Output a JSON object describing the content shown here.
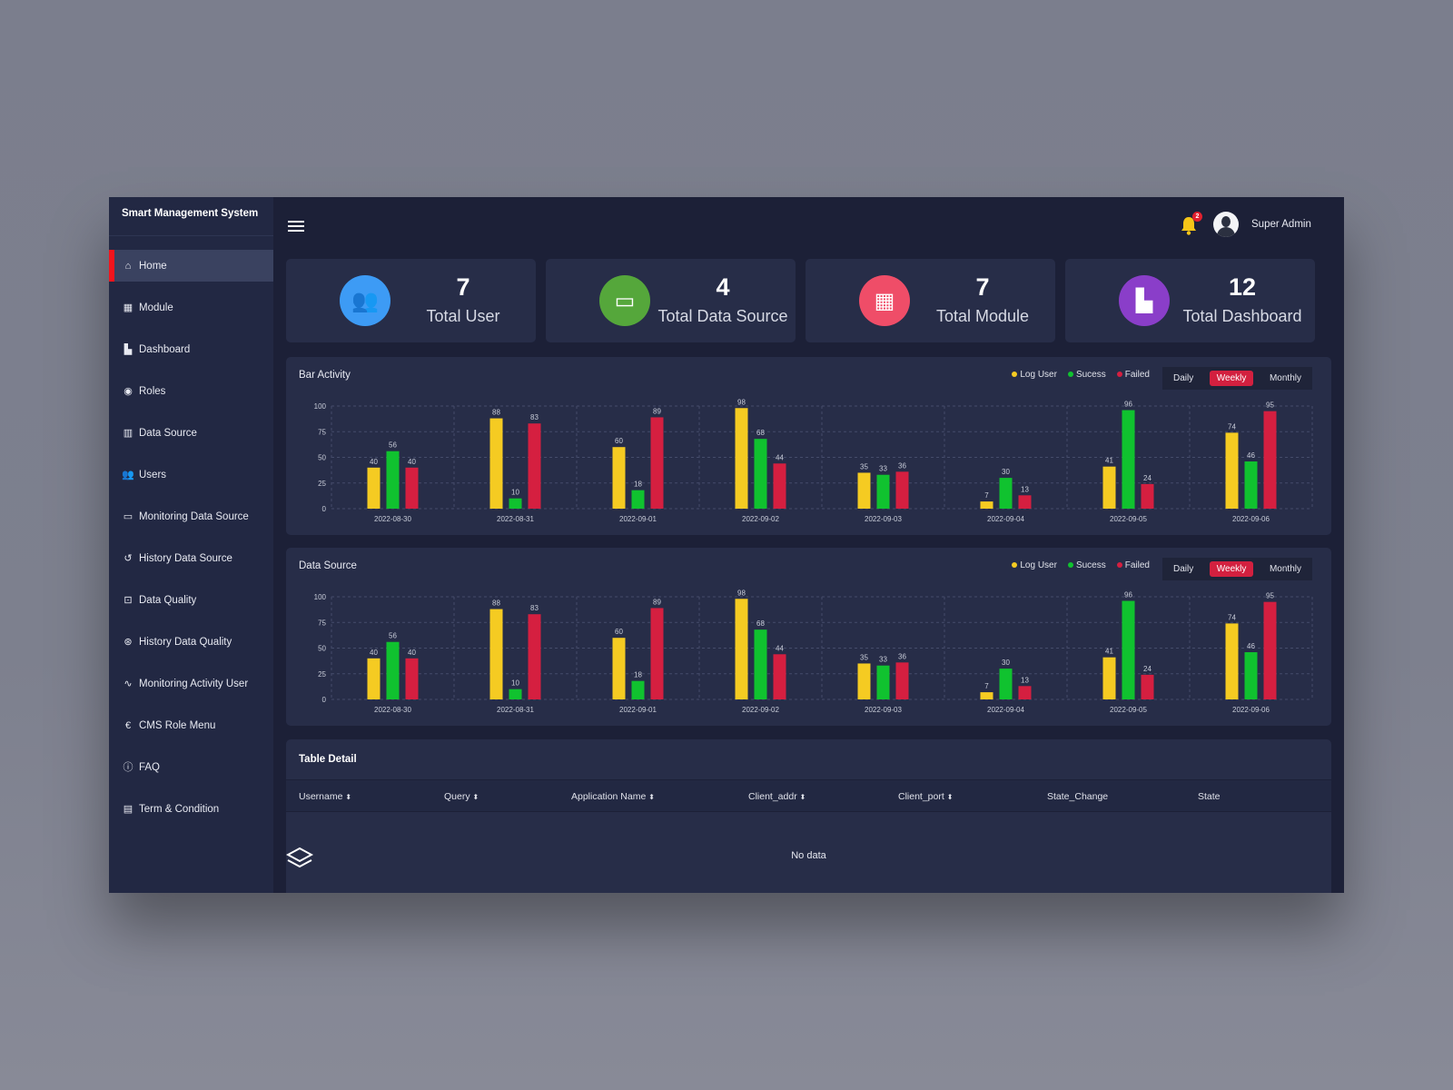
{
  "app": {
    "title": "Smart Management System"
  },
  "sidebar": {
    "items": [
      {
        "label": "Home",
        "icon": "home-icon",
        "glyph": "⌂",
        "active": true
      },
      {
        "label": "Module",
        "icon": "grid-icon",
        "glyph": "▦"
      },
      {
        "label": "Dashboard",
        "icon": "dashboard-icon",
        "glyph": "▙"
      },
      {
        "label": "Roles",
        "icon": "user-circle-icon",
        "glyph": "◉"
      },
      {
        "label": "Data Source",
        "icon": "bar-chart-icon",
        "glyph": "▥"
      },
      {
        "label": "Users",
        "icon": "users-icon",
        "glyph": "👥"
      },
      {
        "label": "Monitoring Data Source",
        "icon": "monitor-icon",
        "glyph": "▭"
      },
      {
        "label": "History Data Source",
        "icon": "history-icon",
        "glyph": "↺"
      },
      {
        "label": "Data Quality",
        "icon": "document-search-icon",
        "glyph": "⊡"
      },
      {
        "label": "History Data Quality",
        "icon": "history-search-icon",
        "glyph": "⊛"
      },
      {
        "label": "Monitoring Activity User",
        "icon": "activity-icon",
        "glyph": "∿"
      },
      {
        "label": "CMS Role Menu",
        "icon": "hand-coin-icon",
        "glyph": "€"
      },
      {
        "label": "FAQ",
        "icon": "info-circle-icon",
        "glyph": "ⓘ"
      },
      {
        "label": "Term & Condition",
        "icon": "file-text-icon",
        "glyph": "▤"
      }
    ]
  },
  "header": {
    "notifications": "2",
    "user": "Super Admin"
  },
  "cards": [
    {
      "value": "7",
      "label": "Total User",
      "color": "#3d9bf5",
      "glyph": "👥",
      "icon": "users-icon"
    },
    {
      "value": "4",
      "label": "Total Data Source",
      "color": "#55a73b",
      "glyph": "▭",
      "icon": "monitor-icon"
    },
    {
      "value": "7",
      "label": "Total Module",
      "color": "#ef4d68",
      "glyph": "▦",
      "icon": "grid-icon"
    },
    {
      "value": "12",
      "label": "Total Dashboard",
      "color": "#8a3ec9",
      "glyph": "▙",
      "icon": "dashboard-icon"
    }
  ],
  "range": {
    "options": [
      "Daily",
      "Weekly",
      "Monthly"
    ],
    "selected": "Weekly"
  },
  "chart_data": [
    {
      "type": "bar",
      "title": "Bar Activity",
      "categories": [
        "2022-08-30",
        "2022-08-31",
        "2022-09-01",
        "2022-09-02",
        "2022-09-03",
        "2022-09-04",
        "2022-09-05",
        "2022-09-06"
      ],
      "ylim": [
        0,
        100
      ],
      "yticks": [
        0,
        25,
        50,
        75,
        100
      ],
      "grid": true,
      "legend": "top-right",
      "series": [
        {
          "name": "Log User",
          "color": "#f5cb22",
          "values": [
            40,
            88,
            60,
            98,
            35,
            7,
            41,
            74
          ]
        },
        {
          "name": "Sucess",
          "color": "#10c22f",
          "values": [
            56,
            10,
            18,
            68,
            33,
            30,
            96,
            46
          ]
        },
        {
          "name": "Failed",
          "color": "#d51f40",
          "values": [
            40,
            83,
            89,
            44,
            36,
            13,
            24,
            95
          ]
        }
      ]
    },
    {
      "type": "bar",
      "title": "Data Source",
      "categories": [
        "2022-08-30",
        "2022-08-31",
        "2022-09-01",
        "2022-09-02",
        "2022-09-03",
        "2022-09-04",
        "2022-09-05",
        "2022-09-06"
      ],
      "ylim": [
        0,
        100
      ],
      "yticks": [
        0,
        25,
        50,
        75,
        100
      ],
      "grid": true,
      "legend": "top-right",
      "series": [
        {
          "name": "Log User",
          "color": "#f5cb22",
          "values": [
            40,
            88,
            60,
            98,
            35,
            7,
            41,
            74
          ]
        },
        {
          "name": "Sucess",
          "color": "#10c22f",
          "values": [
            56,
            10,
            18,
            68,
            33,
            30,
            96,
            46
          ]
        },
        {
          "name": "Failed",
          "color": "#d51f40",
          "values": [
            40,
            83,
            89,
            44,
            36,
            13,
            24,
            95
          ]
        }
      ]
    }
  ],
  "table": {
    "title": "Table Detail",
    "columns": [
      {
        "label": "Username",
        "sortable": true
      },
      {
        "label": "Query",
        "sortable": true
      },
      {
        "label": "Application Name",
        "sortable": true
      },
      {
        "label": "Client_addr",
        "sortable": true
      },
      {
        "label": "Client_port",
        "sortable": true
      },
      {
        "label": "State_Change",
        "sortable": false
      },
      {
        "label": "State",
        "sortable": false
      }
    ],
    "empty": "No data"
  }
}
